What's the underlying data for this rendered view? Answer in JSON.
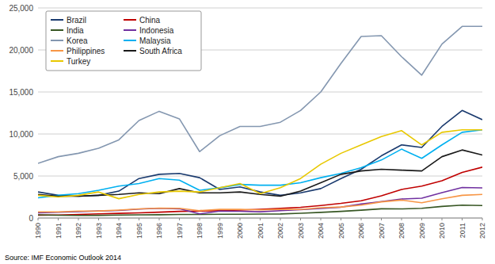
{
  "chart_data": {
    "type": "line",
    "x": [
      1990,
      1991,
      1992,
      1993,
      1994,
      1995,
      1996,
      1997,
      1998,
      1999,
      2000,
      2001,
      2002,
      2003,
      2004,
      2005,
      2006,
      2007,
      2008,
      2009,
      2010,
      2011,
      2012
    ],
    "series": [
      {
        "name": "Brazil",
        "color": "#1a3a6e",
        "values": [
          3100,
          2700,
          2600,
          2700,
          3200,
          4700,
          5200,
          5300,
          4800,
          3400,
          3700,
          3100,
          2700,
          3000,
          3500,
          4700,
          5800,
          7400,
          8700,
          8400,
          10900,
          12800,
          11700
        ]
      },
      {
        "name": "China",
        "color": "#c00000",
        "values": [
          340,
          360,
          420,
          500,
          550,
          620,
          700,
          790,
          830,
          870,
          950,
          1040,
          1140,
          1270,
          1490,
          1740,
          2050,
          2640,
          3400,
          3800,
          4440,
          5430,
          6050
        ]
      },
      {
        "name": "India",
        "color": "#375623",
        "values": [
          375,
          330,
          310,
          320,
          360,
          380,
          390,
          425,
          420,
          445,
          455,
          465,
          485,
          565,
          670,
          790,
          930,
          1100,
          1080,
          1160,
          1380,
          1530,
          1490
        ]
      },
      {
        "name": "Indonesia",
        "color": "#7030a0",
        "values": [
          620,
          690,
          760,
          840,
          900,
          1060,
          1150,
          1100,
          490,
          820,
          800,
          740,
          870,
          1000,
          1130,
          1290,
          1660,
          1950,
          2260,
          2360,
          3020,
          3630,
          3590
        ]
      },
      {
        "name": "Korea",
        "color": "#8497b0",
        "values": [
          6500,
          7300,
          7700,
          8300,
          9300,
          11600,
          12700,
          11800,
          7900,
          9800,
          10900,
          10900,
          11400,
          12800,
          15000,
          18400,
          21600,
          21700,
          19200,
          17000,
          20700,
          22800,
          22800
        ]
      },
      {
        "name": "Malaysia",
        "color": "#00b0f0",
        "values": [
          2400,
          2700,
          2900,
          3300,
          3800,
          4100,
          4700,
          4500,
          3300,
          3600,
          4000,
          3900,
          3900,
          4200,
          4800,
          5300,
          6000,
          6900,
          8200,
          7100,
          8700,
          10200,
          10500
        ]
      },
      {
        "name": "Philippines",
        "color": "#f79646",
        "values": [
          730,
          730,
          830,
          840,
          950,
          1090,
          1180,
          1160,
          880,
          1030,
          1040,
          970,
          1030,
          1020,
          1230,
          1310,
          1540,
          1920,
          2130,
          1820,
          2280,
          2700,
          2800
        ]
      },
      {
        "name": "South Africa",
        "color": "#1a1a1a",
        "values": [
          2800,
          2600,
          2600,
          2700,
          2800,
          3000,
          2900,
          3500,
          3000,
          3000,
          3100,
          2800,
          2600,
          3200,
          4200,
          5200,
          5600,
          5800,
          5700,
          5600,
          7300,
          8100,
          7500
        ]
      },
      {
        "name": "Turkey",
        "color": "#e8c800",
        "values": [
          2700,
          2500,
          2700,
          3100,
          2300,
          2800,
          3100,
          3200,
          3100,
          3600,
          4100,
          2900,
          3600,
          4700,
          6400,
          7700,
          8700,
          9700,
          10400,
          8700,
          10200,
          10500,
          10500
        ]
      }
    ],
    "xlim": [
      1990,
      2012
    ],
    "xticks": [
      1990,
      1991,
      1992,
      1993,
      1994,
      1995,
      1996,
      1997,
      1998,
      1999,
      2000,
      2001,
      2002,
      2003,
      2004,
      2005,
      2006,
      2007,
      2008,
      2009,
      2010,
      2011,
      2012
    ],
    "ylim": [
      0,
      25000
    ],
    "yticks": [
      0,
      {
        "value": 5000,
        "label": "5,000"
      },
      {
        "value": 10000,
        "label": "10,000"
      },
      {
        "value": 15000,
        "label": "15,000"
      },
      {
        "value": 20000,
        "label": "20,000"
      },
      {
        "value": 25000,
        "label": "25,000"
      }
    ],
    "grid": true,
    "legend": "upper left",
    "annotations": [
      "Source: IMF Economic Outlook 2014"
    ]
  }
}
